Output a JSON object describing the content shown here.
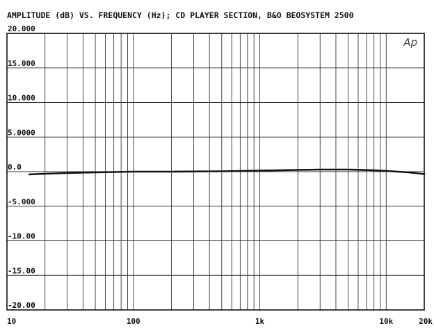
{
  "chart_data": {
    "type": "line",
    "title": "AMPLITUDE (dB) VS. FREQUENCY (Hz);   CD PLAYER SECTION, B&O BEOSYSTEM 2500",
    "brand_mark": "Ap",
    "x_scale": "log",
    "xlim": [
      10,
      20000
    ],
    "ylim": [
      -20,
      20
    ],
    "grid": true,
    "x_tick_labels": [
      {
        "value": 10,
        "label": "10"
      },
      {
        "value": 100,
        "label": "100"
      },
      {
        "value": 1000,
        "label": "1k"
      },
      {
        "value": 10000,
        "label": "10k"
      },
      {
        "value": 20000,
        "label": "20k"
      }
    ],
    "y_tick_labels": [
      {
        "value": 20,
        "label": "20.000"
      },
      {
        "value": 15,
        "label": "15.000"
      },
      {
        "value": 10,
        "label": "10.000"
      },
      {
        "value": 5,
        "label": "5.0000"
      },
      {
        "value": 0,
        "label": "0.0"
      },
      {
        "value": -5,
        "label": "-5.000"
      },
      {
        "value": -10,
        "label": "-10.00"
      },
      {
        "value": -15,
        "label": "-15.00"
      },
      {
        "value": -20,
        "label": "-20.00"
      }
    ],
    "series": [
      {
        "x": [
          15,
          20,
          30,
          50,
          100,
          200,
          500,
          1000,
          2000,
          3000,
          5000,
          8000,
          10000,
          15000,
          20000
        ],
        "y": [
          -0.4,
          -0.3,
          -0.2,
          -0.1,
          0.0,
          0.0,
          0.05,
          0.15,
          0.25,
          0.3,
          0.3,
          0.2,
          0.1,
          -0.1,
          -0.35
        ]
      }
    ]
  }
}
